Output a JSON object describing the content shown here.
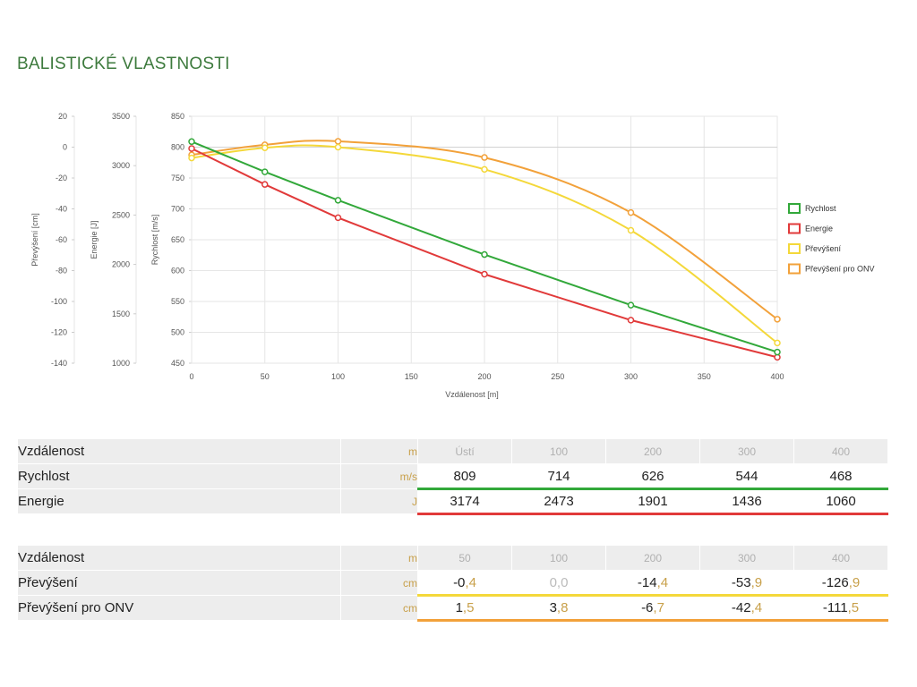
{
  "page": {
    "title": "BALISTICKÉ VLASTNOSTI"
  },
  "chart_data": {
    "type": "line",
    "xlabel": "Vzdálenost [m]",
    "x_ticks": [
      "0",
      "50",
      "100",
      "150",
      "200",
      "250",
      "300",
      "350",
      "400"
    ],
    "xlim": [
      0,
      400
    ],
    "grid": true,
    "legend_position": "right",
    "axes": [
      {
        "id": "prevyseni",
        "label": "Převýšení [cm]",
        "ylim": [
          -140,
          20
        ],
        "ticks": [
          "20",
          "0",
          "-20",
          "-40",
          "-60",
          "-80",
          "-100",
          "-120",
          "-140"
        ]
      },
      {
        "id": "energie",
        "label": "Energie [J]",
        "ylim": [
          1000,
          3500
        ],
        "ticks": [
          "3500",
          "3000",
          "2500",
          "2000",
          "1500",
          "1000"
        ]
      },
      {
        "id": "rychlost",
        "label": "Rychlost [m/s]",
        "ylim": [
          450,
          850
        ],
        "ticks": [
          "850",
          "800",
          "750",
          "700",
          "650",
          "600",
          "550",
          "500",
          "450"
        ]
      }
    ],
    "series": [
      {
        "name": "Rychlost",
        "axis": "rychlost",
        "color": "#32a83a",
        "smooth": false,
        "points": [
          [
            0,
            809
          ],
          [
            50,
            760
          ],
          [
            100,
            714
          ],
          [
            200,
            626
          ],
          [
            300,
            544
          ],
          [
            400,
            468
          ]
        ]
      },
      {
        "name": "Energie",
        "axis": "energie",
        "color": "#e13a3a",
        "smooth": false,
        "points": [
          [
            0,
            3174
          ],
          [
            50,
            2810
          ],
          [
            100,
            2473
          ],
          [
            200,
            1901
          ],
          [
            300,
            1436
          ],
          [
            400,
            1060
          ]
        ]
      },
      {
        "name": "Převýšení",
        "axis": "prevyseni",
        "color": "#f4d83a",
        "smooth": true,
        "points": [
          [
            0,
            -7
          ],
          [
            50,
            -0.4
          ],
          [
            100,
            0.0
          ],
          [
            200,
            -14.4
          ],
          [
            300,
            -53.9
          ],
          [
            400,
            -126.9
          ]
        ]
      },
      {
        "name": "Převýšení pro ONV",
        "axis": "prevyseni",
        "color": "#f2a13a",
        "smooth": true,
        "points": [
          [
            0,
            -5
          ],
          [
            50,
            1.5
          ],
          [
            100,
            3.8
          ],
          [
            200,
            -6.7
          ],
          [
            300,
            -42.4
          ],
          [
            400,
            -111.5
          ]
        ]
      }
    ]
  },
  "tables": [
    {
      "header": {
        "label": "Vzdálenost",
        "unit": "m",
        "cols": [
          "Ústí",
          "100",
          "200",
          "300",
          "400"
        ]
      },
      "rows": [
        {
          "label": "Rychlost",
          "unit": "m/s",
          "line": "green",
          "values": [
            [
              "809",
              ""
            ],
            [
              "714",
              ""
            ],
            [
              "626",
              ""
            ],
            [
              "544",
              ""
            ],
            [
              "468",
              ""
            ]
          ]
        },
        {
          "label": "Energie",
          "unit": "J",
          "line": "red",
          "values": [
            [
              "3174",
              ""
            ],
            [
              "2473",
              ""
            ],
            [
              "1901",
              ""
            ],
            [
              "1436",
              ""
            ],
            [
              "1060",
              ""
            ]
          ]
        }
      ]
    },
    {
      "header": {
        "label": "Vzdálenost",
        "unit": "m",
        "cols": [
          "50",
          "100",
          "200",
          "300",
          "400"
        ]
      },
      "rows": [
        {
          "label": "Převýšení",
          "unit": "cm",
          "line": "yellow",
          "values": [
            [
              "-0",
              ",4"
            ],
            [
              "0",
              ",0"
            ],
            [
              "-14",
              ",4"
            ],
            [
              "-53",
              ",9"
            ],
            [
              "-126",
              ",9"
            ]
          ],
          "muted": [
            false,
            true,
            false,
            false,
            false
          ]
        },
        {
          "label": "Převýšení pro ONV",
          "unit": "cm",
          "line": "orange",
          "values": [
            [
              "1",
              ",5"
            ],
            [
              "3",
              ",8"
            ],
            [
              "-6",
              ",7"
            ],
            [
              "-42",
              ",4"
            ],
            [
              "-111",
              ",5"
            ]
          ],
          "muted": [
            false,
            false,
            false,
            false,
            false
          ]
        }
      ]
    }
  ]
}
